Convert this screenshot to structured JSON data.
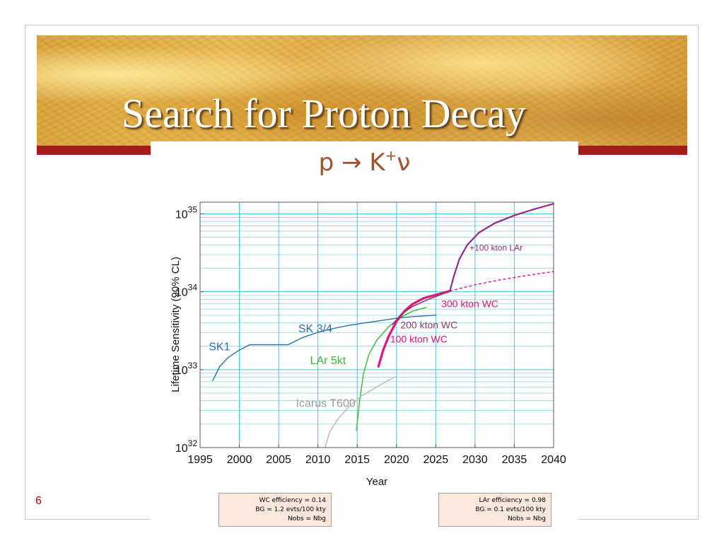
{
  "slide": {
    "title": "Search for Proton Decay",
    "formula": {
      "lhs": "p",
      "arrow": "→",
      "kaon": "K",
      "kaon_charge": "+",
      "neutrino": "ν"
    },
    "page_number": "6"
  },
  "chart_data": {
    "type": "line",
    "title": "",
    "xlabel": "Year",
    "ylabel": "Lifetime Sensitivity (90% CL)",
    "xlim": [
      1995,
      2040
    ],
    "ylim_log10": [
      32,
      35.15
    ],
    "log_y": true,
    "grid": true,
    "x_ticks": [
      "1995",
      "2000",
      "2005",
      "2010",
      "2015",
      "2020",
      "2025",
      "2030",
      "2035",
      "2040"
    ],
    "y_ticks": [
      {
        "base": "10",
        "exp": "32",
        "log10": 32
      },
      {
        "base": "10",
        "exp": "33",
        "log10": 33
      },
      {
        "base": "10",
        "exp": "34",
        "log10": 34
      },
      {
        "base": "10",
        "exp": "35",
        "log10": 35
      }
    ],
    "series": [
      {
        "name": "SK1",
        "color": "#2e6da4",
        "style": "solid",
        "width": 1.4,
        "points": [
          [
            1996.6,
            32.86
          ],
          [
            1997.5,
            33.04
          ],
          [
            1998.5,
            33.15
          ],
          [
            1999.8,
            33.24
          ],
          [
            2001.3,
            33.32
          ],
          [
            2006.2,
            33.32
          ]
        ]
      },
      {
        "name": "SK 3/4",
        "color": "#2e6da4",
        "style": "solid",
        "width": 1.4,
        "points": [
          [
            2006.2,
            33.32
          ],
          [
            2008,
            33.41
          ],
          [
            2010,
            33.48
          ],
          [
            2012,
            33.53
          ],
          [
            2014,
            33.57
          ],
          [
            2016,
            33.6
          ],
          [
            2018,
            33.63
          ],
          [
            2020,
            33.66
          ],
          [
            2022,
            33.68
          ],
          [
            2025,
            33.7
          ]
        ]
      },
      {
        "name": "LAr 5kt",
        "color": "#3cb43c",
        "style": "solid",
        "width": 1.4,
        "points": [
          [
            2014.9,
            32.22
          ],
          [
            2015.3,
            32.6
          ],
          [
            2015.8,
            32.95
          ],
          [
            2016.5,
            33.2
          ],
          [
            2017.5,
            33.38
          ],
          [
            2019,
            33.55
          ],
          [
            2020.5,
            33.67
          ],
          [
            2022,
            33.75
          ],
          [
            2023.8,
            33.8
          ]
        ]
      },
      {
        "name": "Icarus T600",
        "color": "#b8b8b8",
        "style": "solid",
        "width": 1.4,
        "points": [
          [
            2010.9,
            32.0
          ],
          [
            2011.5,
            32.2
          ],
          [
            2012.5,
            32.36
          ],
          [
            2014,
            32.53
          ],
          [
            2015.5,
            32.66
          ],
          [
            2017.5,
            32.78
          ],
          [
            2020,
            32.92
          ]
        ]
      },
      {
        "name": "100 kton WC",
        "color": "#e0157e",
        "style": "solid",
        "width": 3.2,
        "points": [
          [
            2017.7,
            33.04
          ],
          [
            2018.3,
            33.25
          ],
          [
            2019,
            33.43
          ],
          [
            2020,
            33.62
          ],
          [
            2021,
            33.75
          ],
          [
            2022,
            33.84
          ],
          [
            2023.5,
            33.92
          ],
          [
            2025,
            33.96
          ],
          [
            2026.8,
            34.01
          ]
        ]
      },
      {
        "name": "200 kton WC",
        "color": "#8b3a62",
        "style": "solid",
        "width": 1.6,
        "points": [
          [
            2019.5,
            33.58
          ],
          [
            2020.5,
            33.7
          ],
          [
            2022,
            33.81
          ],
          [
            2024,
            33.9
          ],
          [
            2026.8,
            34.01
          ]
        ]
      },
      {
        "name": "300 kton WC",
        "color": "#e0157e",
        "style": "dashed",
        "width": 1.4,
        "points": [
          [
            2026.8,
            34.01
          ],
          [
            2030,
            34.09
          ],
          [
            2033,
            34.15
          ],
          [
            2036,
            34.2
          ],
          [
            2040,
            34.26
          ]
        ]
      },
      {
        "name": "+100 kton LAr",
        "color": "#8e2d86",
        "style": "solid",
        "width": 2.2,
        "points": [
          [
            2026.8,
            34.01
          ],
          [
            2027.3,
            34.2
          ],
          [
            2028,
            34.42
          ],
          [
            2029,
            34.6
          ],
          [
            2030.5,
            34.76
          ],
          [
            2032.5,
            34.88
          ],
          [
            2035,
            34.98
          ],
          [
            2037.5,
            35.06
          ],
          [
            2040,
            35.13
          ]
        ]
      }
    ],
    "annotations": [
      {
        "text": "SK1",
        "x": 1996.1,
        "y": 33.25,
        "color": "#2e6da4",
        "size": 16
      },
      {
        "text": "SK 3/4",
        "x": 2007.5,
        "y": 33.48,
        "color": "#2e6da4",
        "size": 16
      },
      {
        "text": "LAr 5kt",
        "x": 2009.0,
        "y": 33.07,
        "color": "#3cb43c",
        "size": 16
      },
      {
        "text": "Icarus T600",
        "x": 2007.2,
        "y": 32.52,
        "color": "#9a9a9a",
        "size": 16
      },
      {
        "text": "100 kton WC",
        "x": 2019.2,
        "y": 33.35,
        "color": "#e0157e",
        "size": 14
      },
      {
        "text": "200 kton WC",
        "x": 2020.5,
        "y": 33.53,
        "color": "#8b3a62",
        "size": 14
      },
      {
        "text": "300 kton WC",
        "x": 2025.7,
        "y": 33.8,
        "color": "#e0157e",
        "size": 14
      },
      {
        "text": "+100 kton LAr",
        "x": 2029.3,
        "y": 34.53,
        "color": "#8e2d86",
        "size": 12
      }
    ]
  },
  "notes": {
    "wc": {
      "line1": "WC efficiency = 0.14",
      "line2": "BG = 1.2 evts/100 kty",
      "line3": "Nobs = Nbg"
    },
    "lar": {
      "line1": "LAr efficiency = 0.98",
      "line2": "BG = 0.1 evts/100 kty",
      "line3": "Nobs = Nbg"
    }
  }
}
